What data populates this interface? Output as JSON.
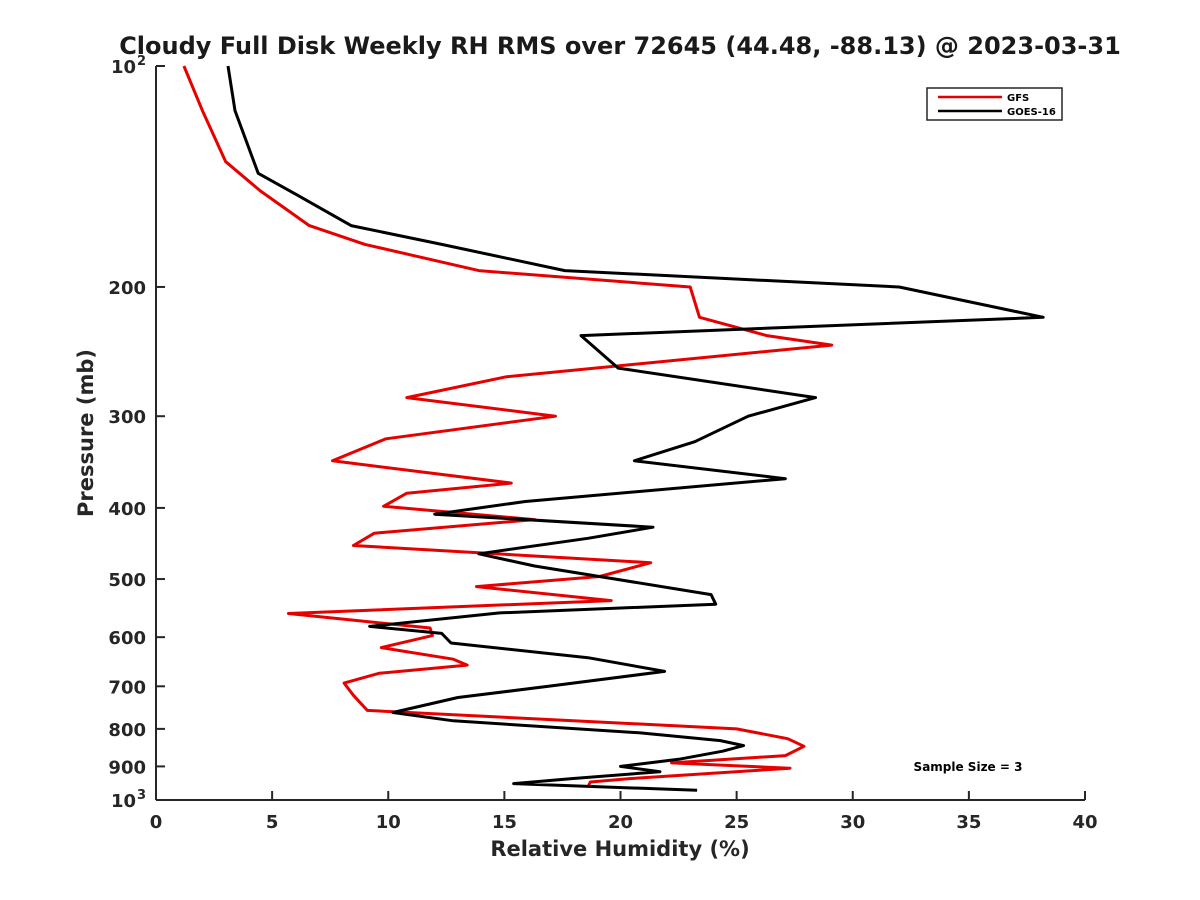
{
  "chart_data": {
    "type": "line",
    "title": "Cloudy Full Disk Weekly RH RMS over 72645 (44.48, -88.13) @ 2023-03-31",
    "xlabel": "Relative Humidity (%)",
    "ylabel": "Pressure (mb)",
    "xlim": [
      0,
      40
    ],
    "ylim": [
      100,
      1000
    ],
    "y_scale": "log",
    "y_reversed": true,
    "x_ticks": [
      "0",
      "5",
      "10",
      "15",
      "20",
      "25",
      "30",
      "35",
      "40"
    ],
    "y_ticks": [
      {
        "value": 100,
        "label": "10",
        "sup": "2"
      },
      {
        "value": 200,
        "label": "200"
      },
      {
        "value": 300,
        "label": "300"
      },
      {
        "value": 400,
        "label": "400"
      },
      {
        "value": 500,
        "label": "500"
      },
      {
        "value": 600,
        "label": "600"
      },
      {
        "value": 700,
        "label": "700"
      },
      {
        "value": 800,
        "label": "800"
      },
      {
        "value": 900,
        "label": "900"
      },
      {
        "value": 1000,
        "label": "10",
        "sup": "3"
      }
    ],
    "legend_position": "top-right",
    "annotation": "Sample Size = 3",
    "series": [
      {
        "name": "GFS",
        "color": "#e60000",
        "points": [
          [
            1.2,
            100
          ],
          [
            2.0,
            115
          ],
          [
            3.0,
            135
          ],
          [
            4.5,
            148
          ],
          [
            6.6,
            165
          ],
          [
            9.0,
            175
          ],
          [
            13.9,
            190
          ],
          [
            23.0,
            200
          ],
          [
            23.4,
            220
          ],
          [
            26.3,
            233
          ],
          [
            29.1,
            240
          ],
          [
            15.1,
            265
          ],
          [
            10.8,
            283
          ],
          [
            17.2,
            300
          ],
          [
            9.9,
            322
          ],
          [
            7.6,
            345
          ],
          [
            15.3,
            370
          ],
          [
            10.8,
            382
          ],
          [
            9.8,
            398
          ],
          [
            16.3,
            415
          ],
          [
            9.4,
            433
          ],
          [
            8.5,
            450
          ],
          [
            21.3,
            475
          ],
          [
            19.1,
            496
          ],
          [
            13.8,
            512
          ],
          [
            19.6,
            535
          ],
          [
            5.7,
            557
          ],
          [
            11.8,
            583
          ],
          [
            11.9,
            597
          ],
          [
            9.7,
            620
          ],
          [
            12.8,
            643
          ],
          [
            13.4,
            655
          ],
          [
            9.6,
            672
          ],
          [
            8.1,
            693
          ],
          [
            8.5,
            720
          ],
          [
            9.1,
            755
          ],
          [
            25.0,
            800
          ],
          [
            27.2,
            825
          ],
          [
            27.9,
            845
          ],
          [
            27.1,
            870
          ],
          [
            22.2,
            890
          ],
          [
            27.3,
            905
          ],
          [
            20.4,
            935
          ],
          [
            18.7,
            945
          ],
          [
            18.6,
            960
          ]
        ]
      },
      {
        "name": "GOES-16",
        "color": "#000000",
        "points": [
          [
            3.1,
            100
          ],
          [
            3.4,
            115
          ],
          [
            4.4,
            140
          ],
          [
            6.1,
            150
          ],
          [
            8.4,
            165
          ],
          [
            12.3,
            175
          ],
          [
            17.6,
            190
          ],
          [
            32.0,
            200
          ],
          [
            38.2,
            220
          ],
          [
            18.3,
            233
          ],
          [
            19.9,
            258
          ],
          [
            28.4,
            283
          ],
          [
            25.5,
            300
          ],
          [
            23.2,
            325
          ],
          [
            20.6,
            345
          ],
          [
            27.1,
            365
          ],
          [
            15.9,
            392
          ],
          [
            12.0,
            408
          ],
          [
            21.4,
            425
          ],
          [
            18.6,
            440
          ],
          [
            13.9,
            462
          ],
          [
            16.3,
            480
          ],
          [
            23.9,
            525
          ],
          [
            24.1,
            541
          ],
          [
            14.8,
            556
          ],
          [
            9.2,
            580
          ],
          [
            12.3,
            593
          ],
          [
            12.7,
            611
          ],
          [
            18.6,
            640
          ],
          [
            21.9,
            668
          ],
          [
            16.9,
            700
          ],
          [
            13.0,
            725
          ],
          [
            10.2,
            760
          ],
          [
            12.8,
            780
          ],
          [
            20.8,
            810
          ],
          [
            24.3,
            830
          ],
          [
            25.3,
            843
          ],
          [
            24.4,
            858
          ],
          [
            22.5,
            880
          ],
          [
            20.0,
            900
          ],
          [
            21.7,
            915
          ],
          [
            17.9,
            935
          ],
          [
            15.4,
            950
          ],
          [
            23.3,
            970
          ]
        ]
      }
    ]
  }
}
